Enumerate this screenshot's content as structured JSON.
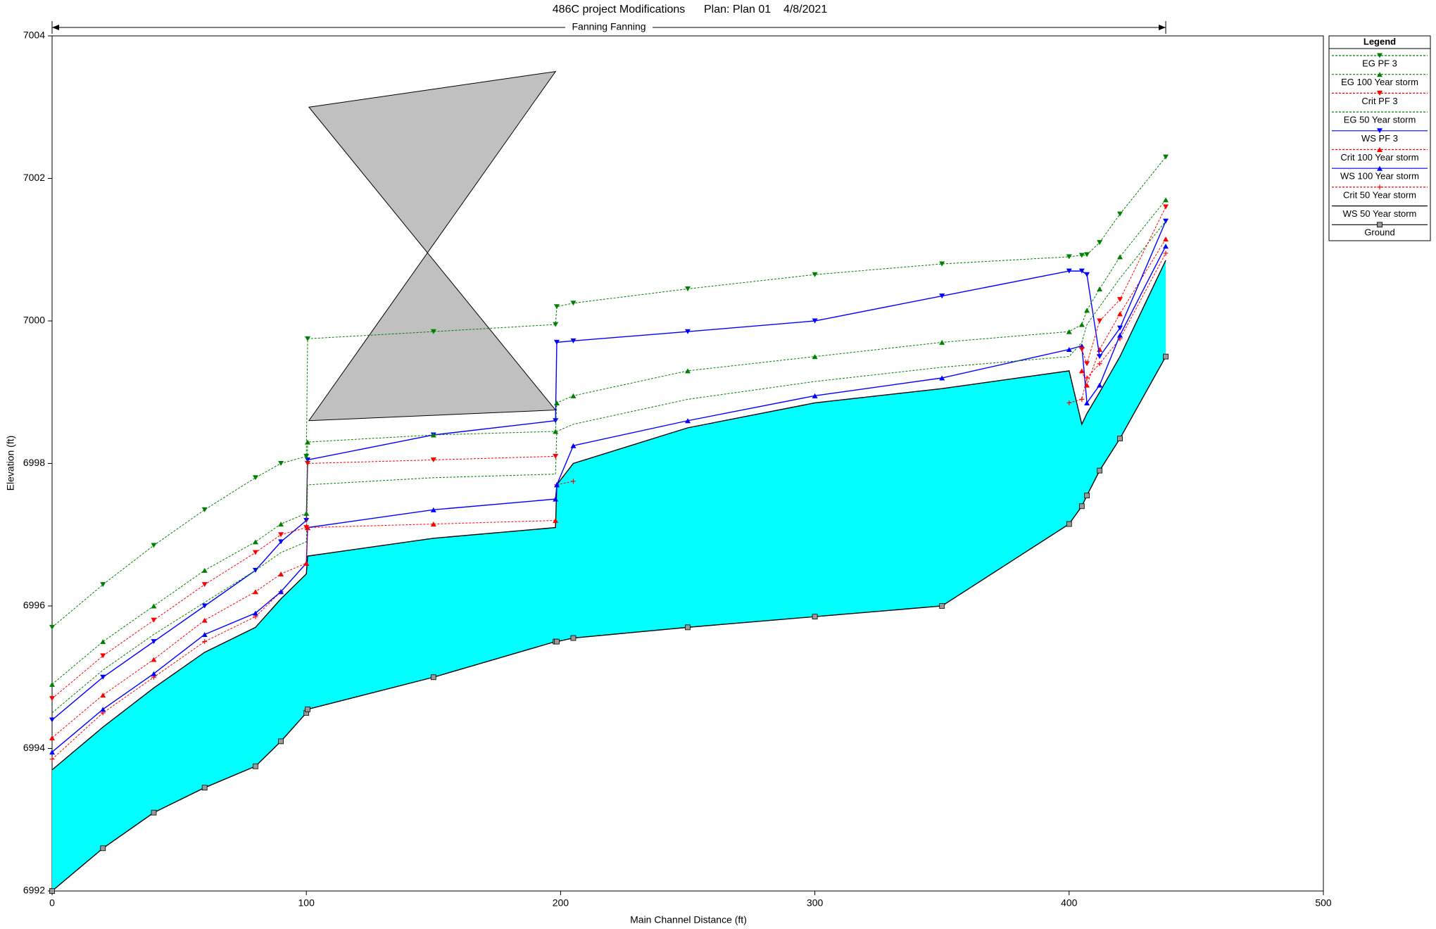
{
  "chart_data": {
    "type": "line",
    "title": "486C project Modifications      Plan: Plan 01    4/8/2021",
    "reach": {
      "label": "Fanning Fanning",
      "xlim": [
        0,
        438
      ]
    },
    "xlabel": "Main Channel Distance (ft)",
    "ylabel": "Elevation (ft)",
    "xlim": [
      0,
      500
    ],
    "xticks": [
      0,
      100,
      200,
      300,
      400,
      500
    ],
    "ylim": [
      6992,
      7004
    ],
    "yticks": [
      6992,
      6994,
      6996,
      6998,
      7000,
      7002,
      7004
    ],
    "legend_title": "Legend",
    "legend": "upper right",
    "fill_color": "#00ffff",
    "deck": {
      "x": [
        101,
        198
      ],
      "high_chord": [
        7003,
        7003.5
      ],
      "low_chord": [
        6998.6,
        6998.75
      ],
      "color": "#c0c0c0"
    },
    "x": [
      0,
      20,
      40,
      60,
      80,
      90,
      100,
      100.5,
      150,
      198,
      198.5,
      205,
      250,
      300,
      350,
      400,
      405,
      407,
      412,
      420,
      438
    ],
    "series": [
      {
        "name": "EG PF 3",
        "color": "#008000",
        "dash": "dotted",
        "marker": "triangle-down",
        "values": [
          6995.7,
          6996.3,
          6996.85,
          6997.35,
          6997.8,
          6998.0,
          6998.1,
          6999.75,
          6999.85,
          6999.95,
          7000.2,
          7000.25,
          7000.45,
          7000.65,
          7000.8,
          7000.9,
          7000.92,
          7000.93,
          7001.1,
          7001.5,
          7002.3
        ]
      },
      {
        "name": "EG 100 Year storm",
        "color": "#008000",
        "dash": "dotted",
        "marker": "triangle-up",
        "values": [
          6994.9,
          6995.5,
          6996.0,
          6996.5,
          6996.9,
          6997.15,
          6997.3,
          6998.3,
          6998.4,
          6998.45,
          6998.85,
          6998.95,
          6999.3,
          6999.5,
          6999.7,
          6999.85,
          6999.95,
          7000.15,
          7000.45,
          7000.9,
          7001.7
        ]
      },
      {
        "name": "Crit PF 3",
        "color": "#ff0000",
        "dash": "dotted",
        "marker": "triangle-down",
        "values": [
          6994.7,
          6995.3,
          6995.8,
          6996.3,
          6996.75,
          6997.0,
          6997.1,
          6998.0,
          6998.05,
          6998.1,
          null,
          null,
          null,
          null,
          null,
          null,
          6999.6,
          6999.4,
          7000.0,
          7000.3,
          7001.6
        ]
      },
      {
        "name": "EG 50 Year storm",
        "color": "#008000",
        "dash": "dotted",
        "marker": "none",
        "values": [
          6994.5,
          6995.1,
          6995.6,
          6996.05,
          6996.5,
          6996.75,
          6996.9,
          6997.7,
          6997.8,
          6997.85,
          6998.45,
          6998.55,
          6998.9,
          6999.15,
          6999.35,
          6999.5,
          6999.7,
          6999.95,
          7000.2,
          7000.6,
          7001.4
        ]
      },
      {
        "name": "WS PF 3",
        "color": "#0000ff",
        "dash": "solid",
        "marker": "triangle-down",
        "values": [
          6994.4,
          6995.0,
          6995.5,
          6996.0,
          6996.5,
          6996.9,
          6997.2,
          6998.05,
          6998.4,
          6998.6,
          6999.7,
          6999.72,
          6999.85,
          7000.0,
          7000.35,
          7000.7,
          7000.7,
          7000.65,
          6999.5,
          6999.9,
          7001.4
        ]
      },
      {
        "name": "Crit 100 Year storm",
        "color": "#ff0000",
        "dash": "dotted",
        "marker": "triangle-up",
        "values": [
          6994.15,
          6994.75,
          6995.25,
          6995.8,
          6996.2,
          6996.45,
          6996.6,
          6997.1,
          6997.15,
          6997.2,
          null,
          null,
          null,
          null,
          null,
          null,
          6999.3,
          6999.1,
          6999.6,
          7000.1,
          7001.15
        ]
      },
      {
        "name": "WS 100 Year storm",
        "color": "#0000ff",
        "dash": "solid",
        "marker": "triangle-up",
        "values": [
          6993.95,
          6994.55,
          6995.05,
          6995.6,
          6995.9,
          6996.2,
          6996.6,
          6997.1,
          6997.35,
          6997.5,
          6997.7,
          6998.25,
          6998.6,
          6998.95,
          6999.2,
          6999.6,
          6999.65,
          6998.85,
          6999.1,
          6999.8,
          7001.05
        ]
      },
      {
        "name": "Crit 50 Year storm",
        "color": "#ff0000",
        "dash": "dotted",
        "marker": "plus",
        "values": [
          6993.85,
          6994.5,
          6995.0,
          6995.5,
          6995.85,
          6996.2,
          null,
          null,
          null,
          null,
          6997.7,
          6997.75,
          null,
          null,
          null,
          6998.85,
          6998.9,
          6999.2,
          6999.4,
          6999.75,
          7000.95
        ]
      },
      {
        "name": "WS 50 Year storm",
        "color": "#000000",
        "dash": "solid",
        "marker": "none",
        "values": [
          6993.7,
          6994.3,
          6994.85,
          6995.35,
          6995.7,
          6996.1,
          6996.45,
          6996.7,
          6996.95,
          6997.1,
          6997.7,
          6998.0,
          6998.5,
          6998.85,
          6999.05,
          6999.3,
          6998.55,
          6998.7,
          6999.0,
          6999.5,
          7000.85
        ]
      },
      {
        "name": "Ground",
        "color": "#000000",
        "dash": "solid",
        "marker": "square",
        "values": [
          6992,
          6992.6,
          6993.1,
          6993.45,
          6993.75,
          6994.1,
          6994.5,
          6994.55,
          6995.0,
          6995.5,
          6995.5,
          6995.55,
          6995.7,
          6995.85,
          6996.0,
          6997.15,
          6997.4,
          6997.55,
          6997.9,
          6998.35,
          6999.5
        ]
      }
    ]
  }
}
